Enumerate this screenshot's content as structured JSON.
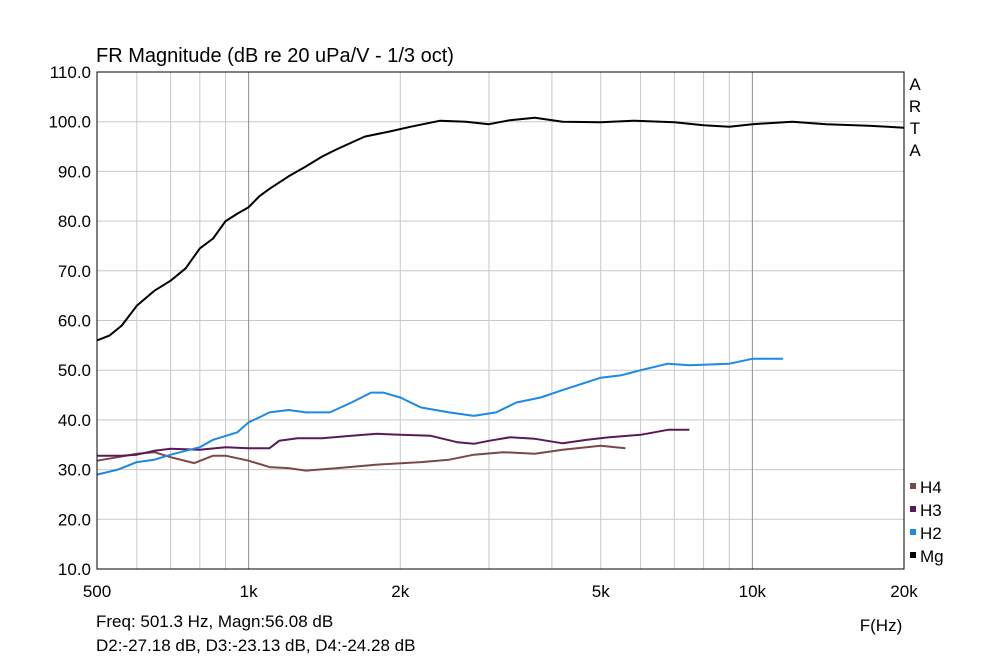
{
  "chart_data": {
    "type": "line",
    "title": "FR Magnitude (dB re 20 uPa/V - 1/3 oct)",
    "watermark": "ARTA",
    "xlabel": "F(Hz)",
    "ylabel": "",
    "x_scale": "log",
    "xlim": [
      500,
      20000
    ],
    "ylim": [
      10,
      110
    ],
    "x_ticks": [
      {
        "value": 500,
        "label": "500"
      },
      {
        "value": 1000,
        "label": "1k"
      },
      {
        "value": 2000,
        "label": "2k"
      },
      {
        "value": 5000,
        "label": "5k"
      },
      {
        "value": 10000,
        "label": "10k"
      },
      {
        "value": 20000,
        "label": "20k"
      }
    ],
    "y_ticks": [
      "10.0",
      "20.0",
      "30.0",
      "40.0",
      "50.0",
      "60.0",
      "70.0",
      "80.0",
      "90.0",
      "100.0",
      "110.0"
    ],
    "grid": true,
    "legend_position": "bottom-right",
    "series": [
      {
        "name": "H4",
        "color": "#7a4848",
        "points": [
          [
            500,
            31.8
          ],
          [
            550,
            32.5
          ],
          [
            600,
            33.2
          ],
          [
            650,
            33.5
          ],
          [
            700,
            32.5
          ],
          [
            780,
            31.3
          ],
          [
            850,
            32.8
          ],
          [
            900,
            32.8
          ],
          [
            1000,
            31.8
          ],
          [
            1100,
            30.5
          ],
          [
            1200,
            30.3
          ],
          [
            1300,
            29.8
          ],
          [
            1500,
            30.3
          ],
          [
            1800,
            31.0
          ],
          [
            2200,
            31.5
          ],
          [
            2500,
            32.0
          ],
          [
            2800,
            33.0
          ],
          [
            3200,
            33.5
          ],
          [
            3700,
            33.2
          ],
          [
            4200,
            34.0
          ],
          [
            5000,
            34.8
          ],
          [
            5600,
            34.3
          ]
        ]
      },
      {
        "name": "H3",
        "color": "#5a1a5a",
        "points": [
          [
            500,
            32.8
          ],
          [
            560,
            32.8
          ],
          [
            600,
            33.0
          ],
          [
            650,
            33.8
          ],
          [
            700,
            34.2
          ],
          [
            800,
            34.0
          ],
          [
            900,
            34.5
          ],
          [
            1000,
            34.3
          ],
          [
            1100,
            34.3
          ],
          [
            1150,
            35.8
          ],
          [
            1250,
            36.3
          ],
          [
            1400,
            36.3
          ],
          [
            1600,
            36.8
          ],
          [
            1800,
            37.2
          ],
          [
            2000,
            37.0
          ],
          [
            2300,
            36.8
          ],
          [
            2600,
            35.5
          ],
          [
            2800,
            35.2
          ],
          [
            3000,
            35.8
          ],
          [
            3300,
            36.5
          ],
          [
            3700,
            36.2
          ],
          [
            4200,
            35.3
          ],
          [
            4700,
            36.0
          ],
          [
            5200,
            36.5
          ],
          [
            6000,
            37.0
          ],
          [
            6800,
            38.0
          ],
          [
            7500,
            38.0
          ]
        ]
      },
      {
        "name": "H2",
        "color": "#1e88e5",
        "points": [
          [
            500,
            29.0
          ],
          [
            550,
            30.0
          ],
          [
            600,
            31.5
          ],
          [
            650,
            32.0
          ],
          [
            700,
            33.0
          ],
          [
            800,
            34.5
          ],
          [
            850,
            36.0
          ],
          [
            950,
            37.5
          ],
          [
            1000,
            39.5
          ],
          [
            1050,
            40.5
          ],
          [
            1100,
            41.5
          ],
          [
            1200,
            42.0
          ],
          [
            1300,
            41.5
          ],
          [
            1450,
            41.5
          ],
          [
            1600,
            43.5
          ],
          [
            1750,
            45.5
          ],
          [
            1850,
            45.5
          ],
          [
            2000,
            44.5
          ],
          [
            2200,
            42.5
          ],
          [
            2500,
            41.5
          ],
          [
            2800,
            40.8
          ],
          [
            3100,
            41.5
          ],
          [
            3400,
            43.5
          ],
          [
            3800,
            44.5
          ],
          [
            4200,
            46.0
          ],
          [
            5000,
            48.5
          ],
          [
            5500,
            49.0
          ],
          [
            6000,
            50.0
          ],
          [
            6800,
            51.3
          ],
          [
            7500,
            51.0
          ],
          [
            9000,
            51.3
          ],
          [
            10000,
            52.3
          ],
          [
            11500,
            52.3
          ]
        ]
      },
      {
        "name": "Mg",
        "color": "#000000",
        "points": [
          [
            500,
            56.0
          ],
          [
            530,
            57.0
          ],
          [
            560,
            59.0
          ],
          [
            600,
            63.0
          ],
          [
            650,
            66.0
          ],
          [
            700,
            68.0
          ],
          [
            750,
            70.5
          ],
          [
            800,
            74.5
          ],
          [
            850,
            76.5
          ],
          [
            900,
            80.0
          ],
          [
            950,
            81.5
          ],
          [
            1000,
            82.8
          ],
          [
            1050,
            85.0
          ],
          [
            1100,
            86.5
          ],
          [
            1200,
            89.0
          ],
          [
            1300,
            91.0
          ],
          [
            1400,
            93.0
          ],
          [
            1500,
            94.5
          ],
          [
            1700,
            97.0
          ],
          [
            1900,
            98.0
          ],
          [
            2100,
            99.0
          ],
          [
            2400,
            100.2
          ],
          [
            2700,
            100.0
          ],
          [
            3000,
            99.5
          ],
          [
            3300,
            100.3
          ],
          [
            3700,
            100.8
          ],
          [
            4200,
            100.0
          ],
          [
            5000,
            99.9
          ],
          [
            5800,
            100.2
          ],
          [
            7000,
            99.9
          ],
          [
            8000,
            99.3
          ],
          [
            9000,
            99.0
          ],
          [
            10000,
            99.5
          ],
          [
            12000,
            100.0
          ],
          [
            14000,
            99.5
          ],
          [
            17000,
            99.2
          ],
          [
            20000,
            98.8
          ]
        ]
      }
    ]
  },
  "readout": {
    "line1": "Freq: 501.3 Hz, Magn:56.08 dB",
    "line2": "D2:-27.18 dB, D3:-23.13 dB, D4:-24.28 dB"
  }
}
